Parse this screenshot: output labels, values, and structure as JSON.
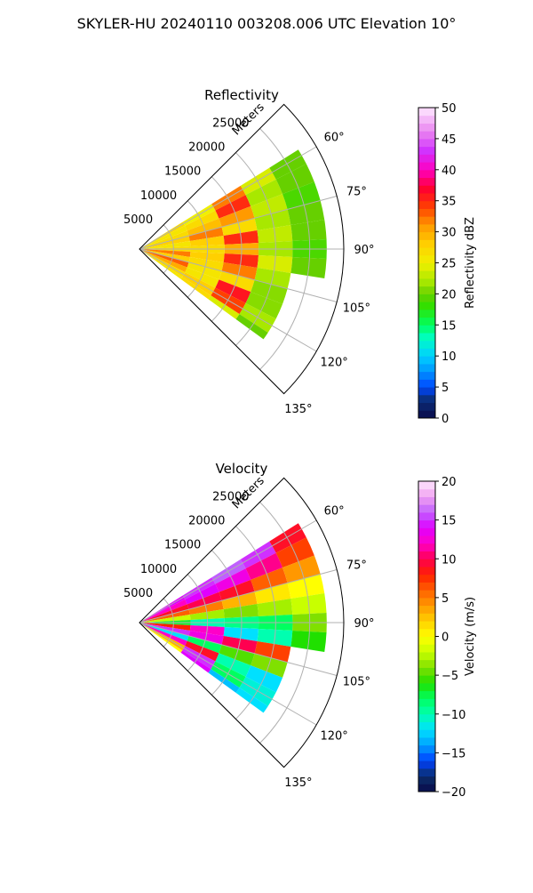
{
  "figure": {
    "title": "SKYLER-HU  20240110  003208.006 UTC Elevation 10°"
  },
  "chart_data": [
    {
      "type": "heatmap",
      "projection": "polar-sector",
      "title": "Reflectivity",
      "radial_axis_label": "Meters",
      "radial_ticks": [
        5000,
        10000,
        15000,
        20000,
        25000
      ],
      "radial_tick_labels": [
        "5000",
        "10000",
        "15000",
        "20000",
        "25000"
      ],
      "r_max": 30000,
      "azimuth_range_deg": [
        45,
        135
      ],
      "azimuth_ticks": [
        60,
        75,
        90,
        105,
        120,
        135
      ],
      "azimuth_tick_labels": [
        "60°",
        "75°",
        "90°",
        "105°",
        "120°",
        "135°"
      ],
      "data_azimuth_range_deg": [
        58,
        126
      ],
      "data_range_m": [
        0,
        26000
      ],
      "grid": true,
      "colorbar": {
        "label": "Reflectivity dBZ",
        "range": [
          0,
          50
        ],
        "ticks": [
          0,
          5,
          10,
          15,
          20,
          25,
          30,
          35,
          40,
          45,
          50
        ],
        "tick_labels": [
          "0",
          "5",
          "10",
          "15",
          "20",
          "25",
          "30",
          "35",
          "40",
          "45",
          "50"
        ],
        "position": "right"
      },
      "cells": [
        {
          "az": 60,
          "r": 5000,
          "v": 27
        },
        {
          "az": 60,
          "r": 10000,
          "v": 25
        },
        {
          "az": 60,
          "r": 15000,
          "v": 32
        },
        {
          "az": 60,
          "r": 20000,
          "v": 24
        },
        {
          "az": 60,
          "r": 25000,
          "v": 20
        },
        {
          "az": 66,
          "r": 5000,
          "v": 26
        },
        {
          "az": 66,
          "r": 10000,
          "v": 27
        },
        {
          "az": 66,
          "r": 15000,
          "v": 35
        },
        {
          "az": 66,
          "r": 20000,
          "v": 22
        },
        {
          "az": 66,
          "r": 25000,
          "v": 20
        },
        {
          "az": 72,
          "r": 5000,
          "v": 27
        },
        {
          "az": 72,
          "r": 10000,
          "v": 29
        },
        {
          "az": 72,
          "r": 15000,
          "v": 31
        },
        {
          "az": 72,
          "r": 20000,
          "v": 23
        },
        {
          "az": 72,
          "r": 25000,
          "v": 19
        },
        {
          "az": 78,
          "r": 5000,
          "v": 28
        },
        {
          "az": 78,
          "r": 10000,
          "v": 32
        },
        {
          "az": 78,
          "r": 15000,
          "v": 27
        },
        {
          "az": 78,
          "r": 20000,
          "v": 22
        },
        {
          "az": 78,
          "r": 25000,
          "v": 20
        },
        {
          "az": 84,
          "r": 5000,
          "v": 26
        },
        {
          "az": 84,
          "r": 10000,
          "v": 28
        },
        {
          "az": 84,
          "r": 15000,
          "v": 35
        },
        {
          "az": 84,
          "r": 20000,
          "v": 23
        },
        {
          "az": 84,
          "r": 25000,
          "v": 20
        },
        {
          "az": 90,
          "r": 5000,
          "v": 27
        },
        {
          "az": 90,
          "r": 10000,
          "v": 27
        },
        {
          "az": 90,
          "r": 15000,
          "v": 30
        },
        {
          "az": 90,
          "r": 20000,
          "v": 22
        },
        {
          "az": 90,
          "r": 25000,
          "v": 19
        },
        {
          "az": 96,
          "r": 5000,
          "v": 32
        },
        {
          "az": 96,
          "r": 10000,
          "v": 28
        },
        {
          "az": 96,
          "r": 15000,
          "v": 35
        },
        {
          "az": 96,
          "r": 20000,
          "v": 24
        },
        {
          "az": 96,
          "r": 25000,
          "v": 20
        },
        {
          "az": 102,
          "r": 5000,
          "v": 28
        },
        {
          "az": 102,
          "r": 10000,
          "v": 27
        },
        {
          "az": 102,
          "r": 15000,
          "v": 32
        },
        {
          "az": 102,
          "r": 20000,
          "v": 22
        },
        {
          "az": 108,
          "r": 5000,
          "v": 33
        },
        {
          "az": 108,
          "r": 10000,
          "v": 26
        },
        {
          "az": 108,
          "r": 15000,
          "v": 27
        },
        {
          "az": 108,
          "r": 20000,
          "v": 21
        },
        {
          "az": 114,
          "r": 5000,
          "v": 30
        },
        {
          "az": 114,
          "r": 10000,
          "v": 26
        },
        {
          "az": 114,
          "r": 15000,
          "v": 36
        },
        {
          "az": 114,
          "r": 20000,
          "v": 21
        },
        {
          "az": 120,
          "r": 5000,
          "v": 27
        },
        {
          "az": 120,
          "r": 10000,
          "v": 28
        },
        {
          "az": 120,
          "r": 15000,
          "v": 34
        },
        {
          "az": 120,
          "r": 20000,
          "v": 22
        },
        {
          "az": 126,
          "r": 5000,
          "v": 26
        },
        {
          "az": 126,
          "r": 10000,
          "v": 27
        },
        {
          "az": 126,
          "r": 15000,
          "v": 24
        },
        {
          "az": 126,
          "r": 20000,
          "v": 20
        }
      ]
    },
    {
      "type": "heatmap",
      "projection": "polar-sector",
      "title": "Velocity",
      "radial_axis_label": "Meters",
      "radial_ticks": [
        5000,
        10000,
        15000,
        20000,
        25000
      ],
      "radial_tick_labels": [
        "5000",
        "10000",
        "15000",
        "20000",
        "25000"
      ],
      "r_max": 30000,
      "azimuth_range_deg": [
        45,
        135
      ],
      "azimuth_ticks": [
        60,
        75,
        90,
        105,
        120,
        135
      ],
      "azimuth_tick_labels": [
        "60°",
        "75°",
        "90°",
        "105°",
        "120°",
        "135°"
      ],
      "data_azimuth_range_deg": [
        58,
        126
      ],
      "data_range_m": [
        0,
        26000
      ],
      "grid": true,
      "colorbar": {
        "label": "Velocity (m/s)",
        "range": [
          -20,
          20
        ],
        "ticks": [
          -20,
          -15,
          -10,
          -5,
          0,
          5,
          10,
          15,
          20
        ],
        "tick_labels": [
          "−20",
          "−15",
          "−10",
          "−5",
          "0",
          "5",
          "10",
          "15",
          "20"
        ],
        "position": "right"
      },
      "cells": [
        {
          "az": 60,
          "r": 5000,
          "v": 14
        },
        {
          "az": 60,
          "r": 10000,
          "v": 15
        },
        {
          "az": 60,
          "r": 15000,
          "v": 16
        },
        {
          "az": 60,
          "r": 20000,
          "v": 15
        },
        {
          "az": 60,
          "r": 25000,
          "v": 9
        },
        {
          "az": 66,
          "r": 5000,
          "v": 12
        },
        {
          "az": 66,
          "r": 10000,
          "v": 14
        },
        {
          "az": 66,
          "r": 15000,
          "v": 13
        },
        {
          "az": 66,
          "r": 20000,
          "v": 11
        },
        {
          "az": 66,
          "r": 25000,
          "v": 7
        },
        {
          "az": 72,
          "r": 5000,
          "v": 9
        },
        {
          "az": 72,
          "r": 10000,
          "v": 10
        },
        {
          "az": 72,
          "r": 15000,
          "v": 9
        },
        {
          "az": 72,
          "r": 20000,
          "v": 6
        },
        {
          "az": 72,
          "r": 25000,
          "v": 4
        },
        {
          "az": 78,
          "r": 5000,
          "v": 6
        },
        {
          "az": 78,
          "r": 10000,
          "v": 5
        },
        {
          "az": 78,
          "r": 15000,
          "v": 3
        },
        {
          "az": 78,
          "r": 20000,
          "v": 1
        },
        {
          "az": 78,
          "r": 25000,
          "v": 0
        },
        {
          "az": 84,
          "r": 5000,
          "v": -2
        },
        {
          "az": 84,
          "r": 10000,
          "v": -3
        },
        {
          "az": 84,
          "r": 15000,
          "v": -4
        },
        {
          "az": 84,
          "r": 20000,
          "v": -3
        },
        {
          "az": 84,
          "r": 25000,
          "v": -2
        },
        {
          "az": 90,
          "r": 5000,
          "v": -7
        },
        {
          "az": 90,
          "r": 10000,
          "v": -10
        },
        {
          "az": 90,
          "r": 15000,
          "v": -9
        },
        {
          "az": 90,
          "r": 20000,
          "v": -8
        },
        {
          "az": 90,
          "r": 25000,
          "v": -4
        },
        {
          "az": 96,
          "r": 5000,
          "v": 8
        },
        {
          "az": 96,
          "r": 10000,
          "v": 12
        },
        {
          "az": 96,
          "r": 15000,
          "v": -12
        },
        {
          "az": 96,
          "r": 20000,
          "v": -10
        },
        {
          "az": 96,
          "r": 25000,
          "v": -6
        },
        {
          "az": 102,
          "r": 5000,
          "v": 15
        },
        {
          "az": 102,
          "r": 10000,
          "v": 13
        },
        {
          "az": 102,
          "r": 15000,
          "v": 10
        },
        {
          "az": 102,
          "r": 20000,
          "v": 7
        },
        {
          "az": 108,
          "r": 5000,
          "v": -12
        },
        {
          "az": 108,
          "r": 10000,
          "v": -8
        },
        {
          "az": 108,
          "r": 15000,
          "v": -5
        },
        {
          "az": 108,
          "r": 20000,
          "v": -4
        },
        {
          "az": 114,
          "r": 5000,
          "v": 12
        },
        {
          "az": 114,
          "r": 10000,
          "v": 9
        },
        {
          "az": 114,
          "r": 15000,
          "v": -10
        },
        {
          "az": 114,
          "r": 20000,
          "v": -12
        },
        {
          "az": 120,
          "r": 5000,
          "v": 3
        },
        {
          "az": 120,
          "r": 10000,
          "v": 15
        },
        {
          "az": 120,
          "r": 15000,
          "v": -8
        },
        {
          "az": 120,
          "r": 20000,
          "v": -11
        },
        {
          "az": 126,
          "r": 5000,
          "v": 0
        },
        {
          "az": 126,
          "r": 10000,
          "v": 14
        },
        {
          "az": 126,
          "r": 15000,
          "v": -13
        },
        {
          "az": 126,
          "r": 20000,
          "v": -12
        }
      ]
    }
  ]
}
